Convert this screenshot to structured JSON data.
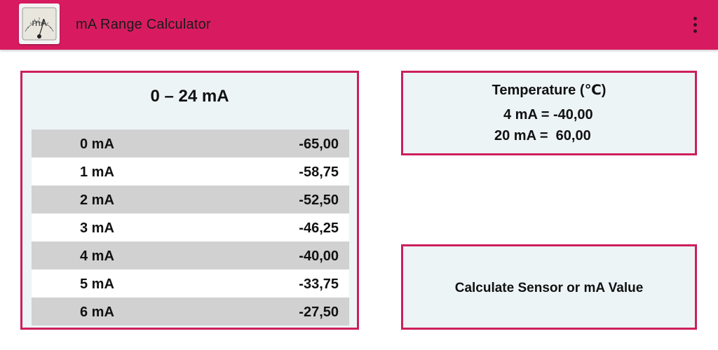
{
  "appbar": {
    "title": "mA Range Calculator",
    "icon": "ammeter-gauge-icon",
    "icon_text": "mA",
    "menu_icon": "overflow-menu-icon"
  },
  "range_table": {
    "title": "0 – 24 mA",
    "rows": [
      {
        "ma": "0 mA",
        "value": "-65,00"
      },
      {
        "ma": "1 mA",
        "value": "-58,75"
      },
      {
        "ma": "2 mA",
        "value": "-52,50"
      },
      {
        "ma": "3 mA",
        "value": "-46,25"
      },
      {
        "ma": "4 mA",
        "value": "-40,00"
      },
      {
        "ma": "5 mA",
        "value": "-33,75"
      },
      {
        "ma": "6 mA",
        "value": "-27,50"
      }
    ]
  },
  "temperature": {
    "title": "Temperature (℃)",
    "line_4ma": "4 mA = -40,00",
    "line_20ma": "20 mA =  60,00"
  },
  "calculate_button": {
    "label": "Calculate Sensor or mA Value"
  },
  "colors": {
    "appbar": "#d81b60",
    "card_border": "#cc1f5c",
    "card_background": "#edf4f5",
    "row_shaded": "#d1d1d1",
    "row_plain": "#ffffff"
  }
}
